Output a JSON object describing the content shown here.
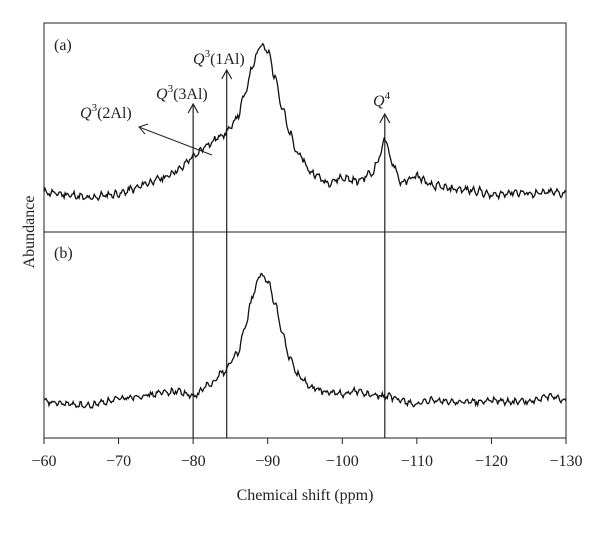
{
  "chart_data": {
    "type": "line",
    "xlabel": "Chemical shift (ppm)",
    "ylabel": "Abundance",
    "xlim": [
      -60,
      -130
    ],
    "x_ticks": [
      -60,
      -70,
      -80,
      -90,
      -100,
      -110,
      -120,
      -130
    ],
    "x_tick_labels": [
      "−60",
      "−70",
      "−80",
      "−90",
      "−100",
      "−110",
      "−120",
      "−130"
    ],
    "panels": [
      {
        "label": "(a)"
      },
      {
        "label": "(b)"
      }
    ],
    "series": [
      {
        "panel": 0,
        "x": [
          -60,
          -62,
          -64,
          -66,
          -68,
          -70,
          -72,
          -74,
          -76,
          -78,
          -80,
          -82,
          -84,
          -85,
          -86,
          -87,
          -88,
          -89,
          -90,
          -91,
          -92,
          -93,
          -94,
          -96,
          -98,
          -100,
          -102,
          -104,
          -105,
          -105.7,
          -106.5,
          -108,
          -110,
          -112,
          -115,
          -118,
          -120,
          -123,
          -126,
          -128,
          -130
        ],
        "y": [
          0.08,
          0.07,
          0.06,
          0.04,
          0.06,
          0.07,
          0.1,
          0.14,
          0.17,
          0.22,
          0.3,
          0.38,
          0.44,
          0.48,
          0.56,
          0.7,
          0.88,
          1.0,
          0.96,
          0.8,
          0.6,
          0.44,
          0.32,
          0.2,
          0.14,
          0.17,
          0.15,
          0.2,
          0.3,
          0.42,
          0.28,
          0.14,
          0.18,
          0.12,
          0.1,
          0.09,
          0.06,
          0.08,
          0.07,
          0.08,
          0.07
        ]
      },
      {
        "panel": 1,
        "x": [
          -60,
          -62,
          -64,
          -66,
          -68,
          -70,
          -72,
          -74,
          -76,
          -78,
          -80,
          -82,
          -84,
          -86,
          -87,
          -88,
          -89,
          -90,
          -91,
          -92,
          -93,
          -94,
          -96,
          -98,
          -100,
          -102,
          -104,
          -106,
          -108,
          -110,
          -112,
          -115,
          -118,
          -120,
          -123,
          -126,
          -128,
          -130
        ],
        "y": [
          0.06,
          0.05,
          0.04,
          0.03,
          0.06,
          0.08,
          0.1,
          0.11,
          0.13,
          0.14,
          0.1,
          0.18,
          0.28,
          0.42,
          0.62,
          0.85,
          1.0,
          0.96,
          0.78,
          0.56,
          0.38,
          0.26,
          0.16,
          0.13,
          0.12,
          0.14,
          0.11,
          0.1,
          0.07,
          0.04,
          0.07,
          0.06,
          0.06,
          0.07,
          0.06,
          0.07,
          0.1,
          0.06
        ]
      }
    ],
    "annotations": [
      {
        "label_main": "Q",
        "label_sup": "3",
        "label_rest": "(2Al)",
        "points_to_x": -86
      },
      {
        "label_main": "Q",
        "label_sup": "3",
        "label_rest": "(3Al)",
        "x": -80
      },
      {
        "label_main": "Q",
        "label_sup": "3",
        "label_rest": "(1Al)",
        "x": -84.5
      },
      {
        "label_main": "Q",
        "label_sup": "4",
        "label_rest": "",
        "x": -105.7
      }
    ]
  }
}
